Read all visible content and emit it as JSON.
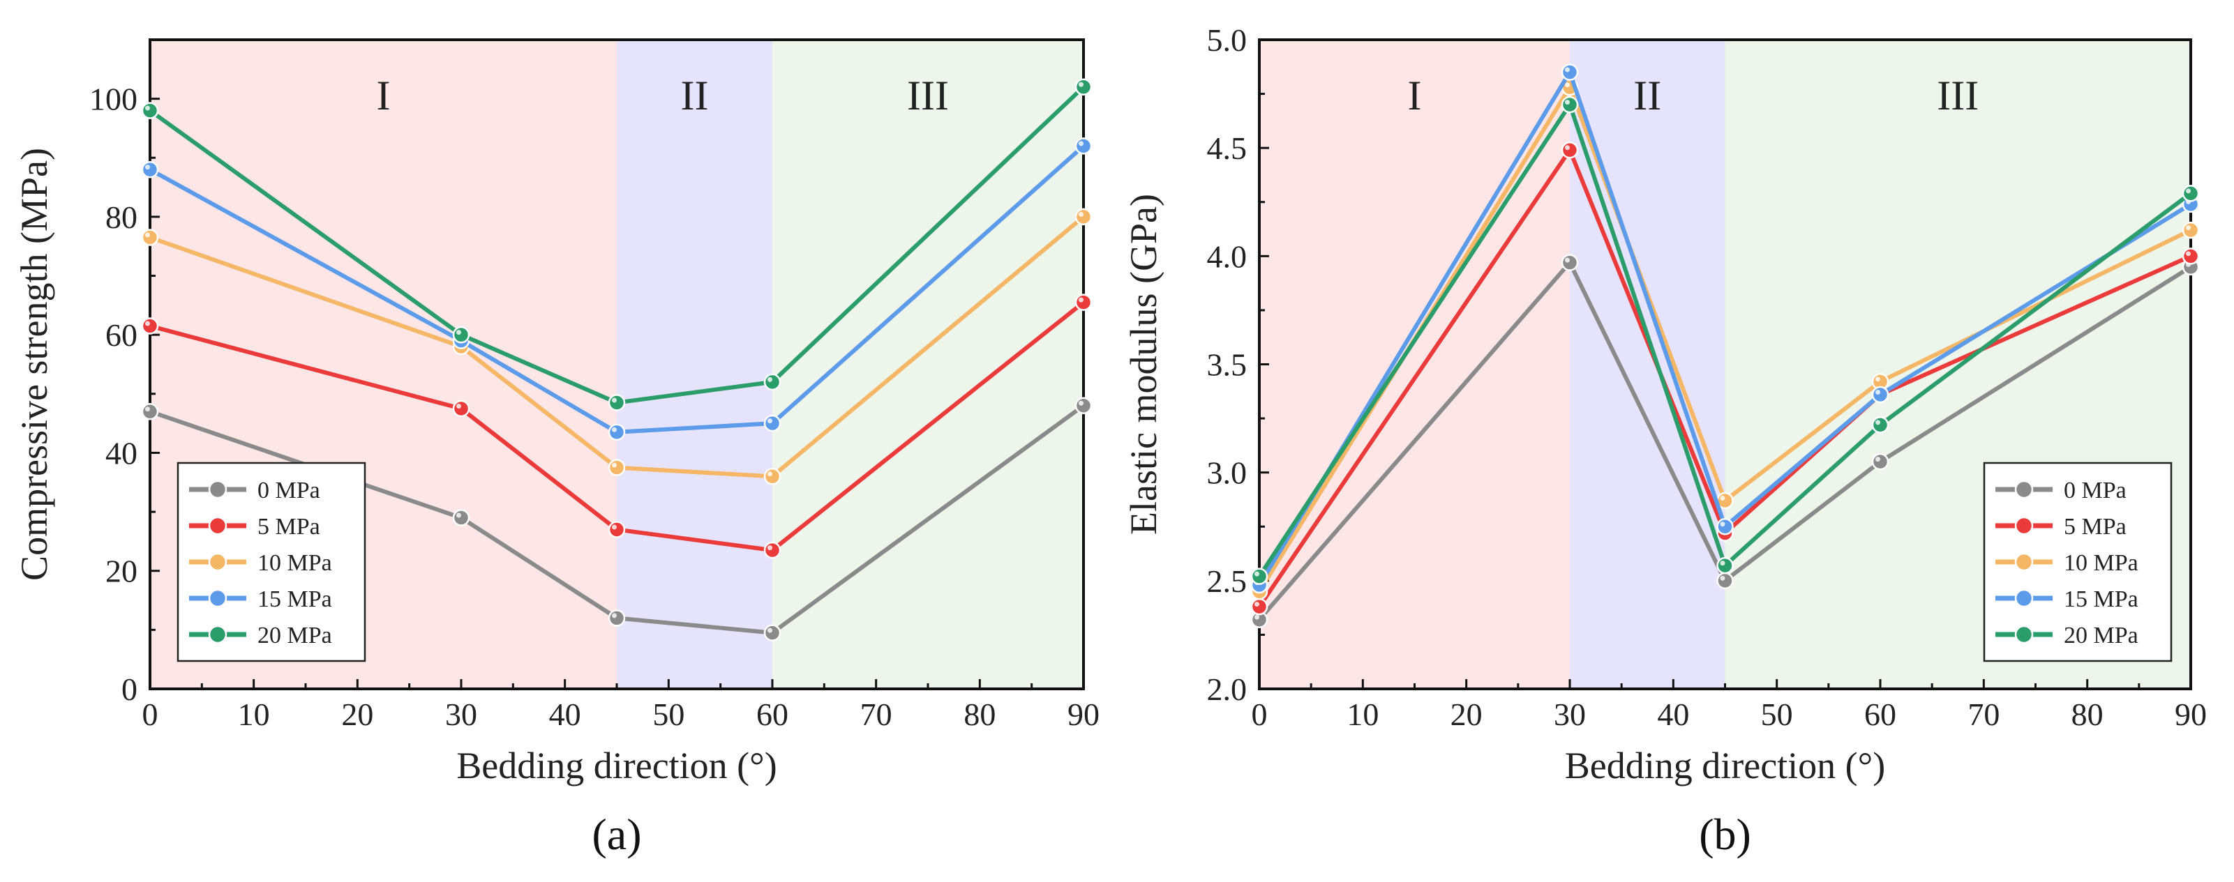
{
  "chart_data": [
    {
      "type": "line",
      "panel_label": "(a)",
      "xlabel": "Bedding direction (°)",
      "ylabel": "Compressive strength (MPa)",
      "xlim": [
        0,
        90
      ],
      "ylim": [
        0,
        110
      ],
      "x_ticks": [
        0,
        10,
        20,
        30,
        40,
        50,
        60,
        70,
        80,
        90
      ],
      "y_ticks": [
        0,
        20,
        40,
        60,
        80,
        100
      ],
      "regions": [
        {
          "label": "I",
          "from": 0,
          "to": 45,
          "color": "#fde6e6"
        },
        {
          "label": "II",
          "from": 45,
          "to": 60,
          "color": "#e6e4fc"
        },
        {
          "label": "III",
          "from": 60,
          "to": 90,
          "color": "#eef5ea"
        }
      ],
      "legend_position": "bottom-left",
      "x": [
        0,
        30,
        45,
        60,
        90
      ],
      "series": [
        {
          "name": "0 MPa",
          "color": "#8a8a8a",
          "values": [
            47,
            29,
            12,
            9.5,
            48
          ]
        },
        {
          "name": "5 MPa",
          "color": "#ea3a3a",
          "values": [
            61.5,
            47.5,
            27,
            23.5,
            65.5
          ]
        },
        {
          "name": "10 MPa",
          "color": "#f5b766",
          "values": [
            76.5,
            58,
            37.5,
            36,
            80
          ]
        },
        {
          "name": "15 MPa",
          "color": "#5b9bea",
          "values": [
            88,
            59,
            43.5,
            45,
            92
          ]
        },
        {
          "name": "20 MPa",
          "color": "#2a9d6b",
          "values": [
            98,
            60,
            48.5,
            52,
            102
          ]
        }
      ]
    },
    {
      "type": "line",
      "panel_label": "(b)",
      "xlabel": "Bedding direction (°)",
      "ylabel": "Elastic modulus (GPa)",
      "xlim": [
        0,
        90
      ],
      "ylim": [
        2.0,
        5.0
      ],
      "x_ticks": [
        0,
        10,
        20,
        30,
        40,
        50,
        60,
        70,
        80,
        90
      ],
      "y_ticks": [
        2.0,
        2.5,
        3.0,
        3.5,
        4.0,
        4.5,
        5.0
      ],
      "regions": [
        {
          "label": "I",
          "from": 0,
          "to": 30,
          "color": "#fde6e6"
        },
        {
          "label": "II",
          "from": 30,
          "to": 45,
          "color": "#e6e4fc"
        },
        {
          "label": "III",
          "from": 45,
          "to": 90,
          "color": "#eef5ea"
        }
      ],
      "legend_position": "bottom-right",
      "x": [
        0,
        30,
        45,
        60,
        90
      ],
      "series": [
        {
          "name": "0 MPa",
          "color": "#8a8a8a",
          "values": [
            2.32,
            3.97,
            2.5,
            3.05,
            3.95
          ]
        },
        {
          "name": "5 MPa",
          "color": "#ea3a3a",
          "values": [
            2.38,
            4.49,
            2.72,
            3.36,
            4.0
          ]
        },
        {
          "name": "10 MPa",
          "color": "#f5b766",
          "values": [
            2.45,
            4.78,
            2.87,
            3.42,
            4.12
          ]
        },
        {
          "name": "15 MPa",
          "color": "#5b9bea",
          "values": [
            2.48,
            4.85,
            2.75,
            3.36,
            4.24
          ]
        },
        {
          "name": "20 MPa",
          "color": "#2a9d6b",
          "values": [
            2.52,
            4.7,
            2.57,
            3.22,
            4.29
          ]
        }
      ]
    }
  ]
}
